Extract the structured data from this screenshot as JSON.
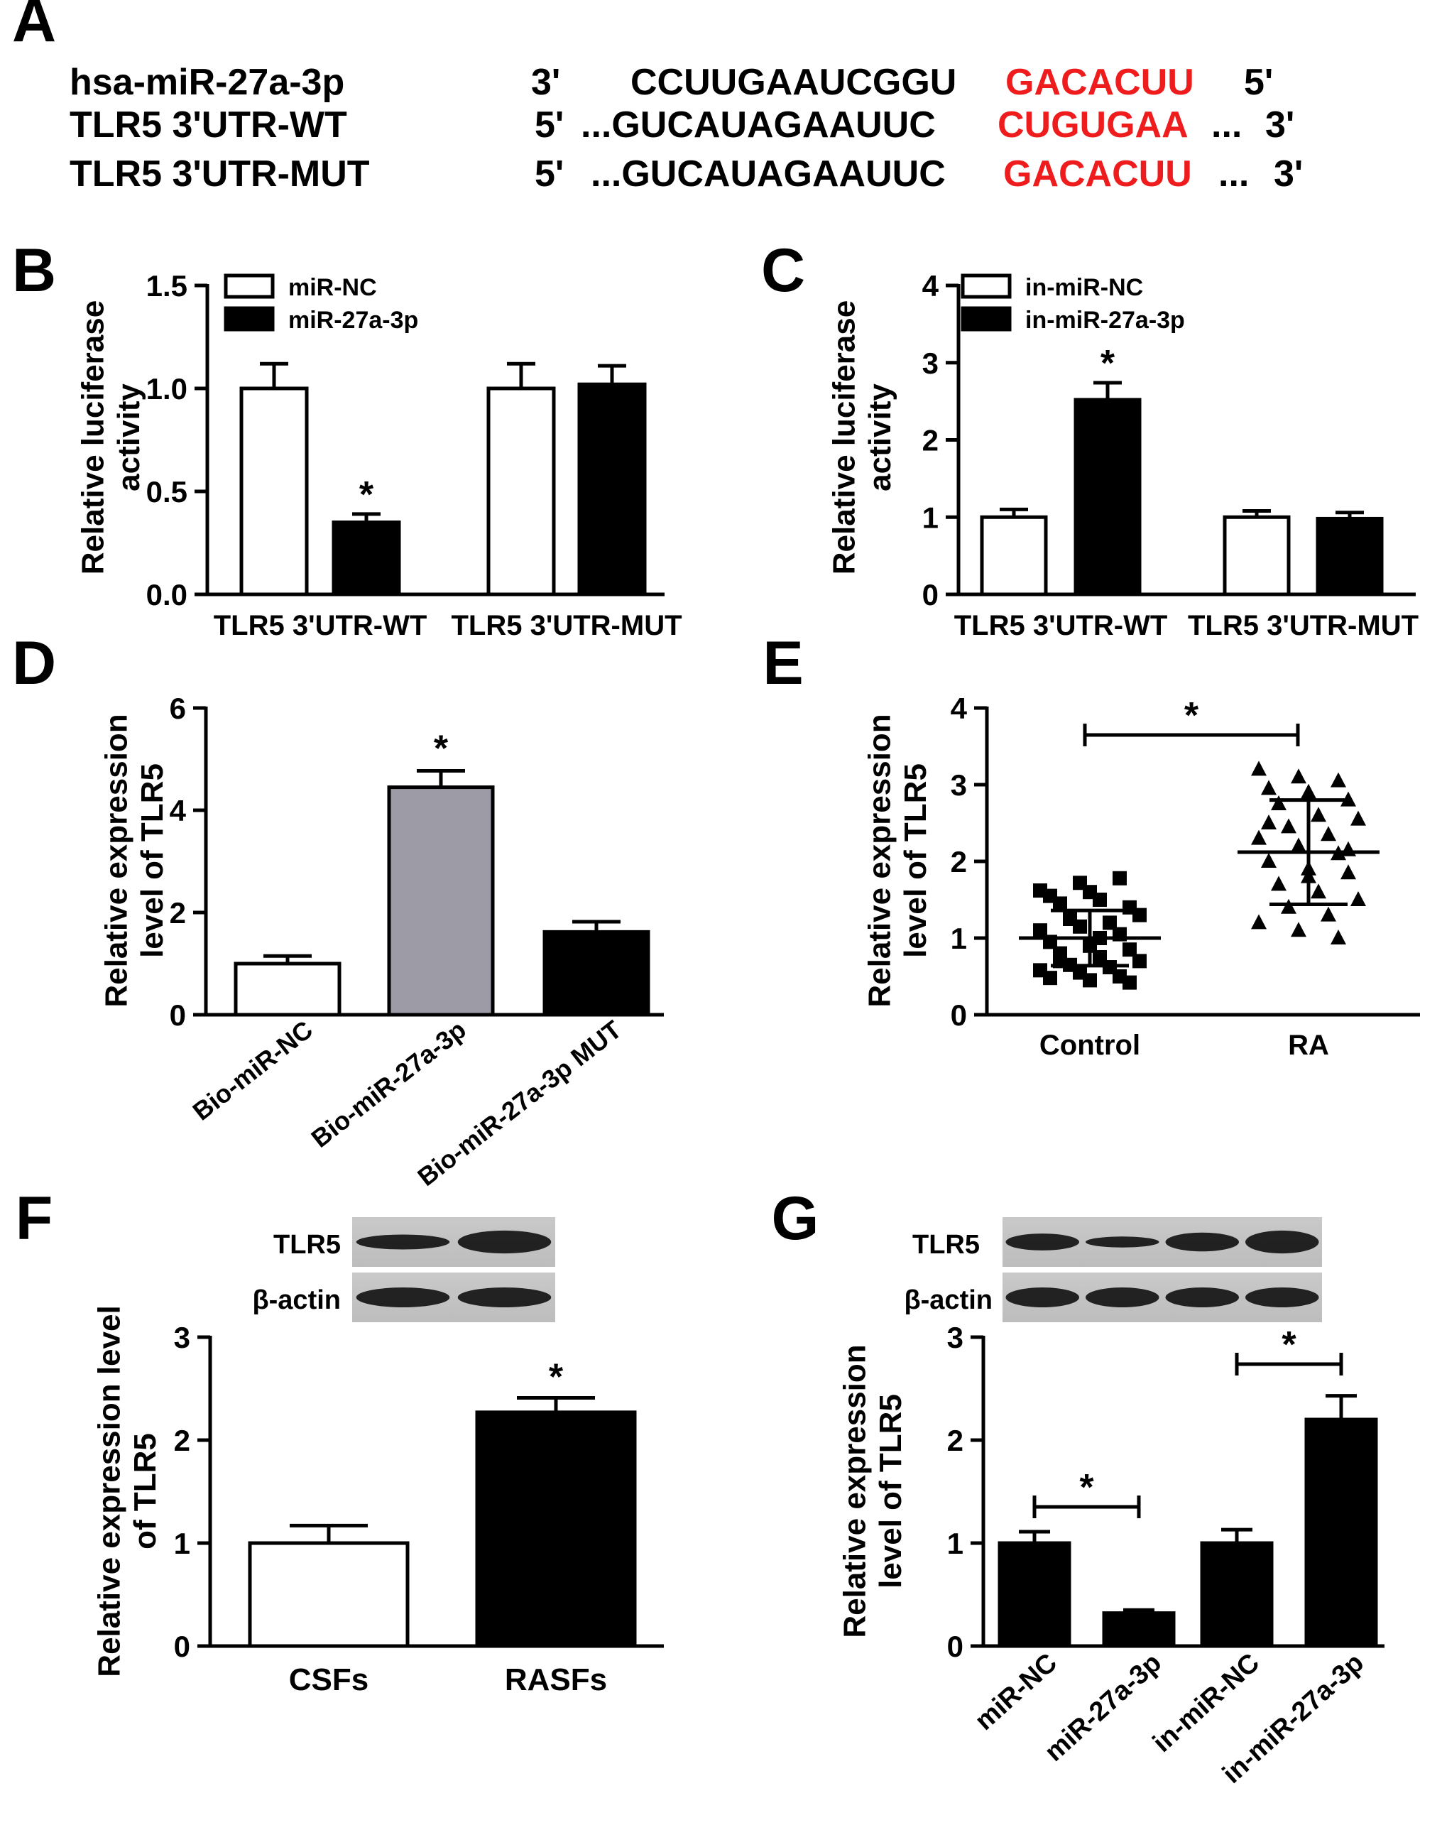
{
  "panel_letters": [
    "A",
    "B",
    "C",
    "D",
    "E",
    "F",
    "G"
  ],
  "sequences": [
    {
      "name": "hsa-miR-27a-3p",
      "end_left": "3'",
      "prefix": "CCUUGAAUCGGU",
      "highlight": "GACACUU",
      "suffix": "",
      "end_right": "5'"
    },
    {
      "name": "TLR5 3'UTR-WT",
      "end_left": "5'",
      "prefix": "...GUCAUAGAAUUC",
      "highlight": "CUGUGAA",
      "suffix": "...",
      "end_right": "3'"
    },
    {
      "name": "TLR5 3'UTR-MUT",
      "end_left": "5'",
      "prefix": "...GUCAUAGAAUUC",
      "highlight": "GACACUU",
      "suffix": "...",
      "end_right": "3'"
    }
  ],
  "colors": {
    "highlight": "#ee1c1c",
    "bar_black": "#000000",
    "bar_white": "#ffffff",
    "bar_gray": "#9d9ca6"
  },
  "chart_data": [
    {
      "panel": "B",
      "type": "bar",
      "ylabel": "Relative luciferase activity",
      "ylim": [
        0,
        1.5
      ],
      "yticks": [
        "0.0",
        "0.5",
        "1.0",
        "1.5"
      ],
      "group_labels": [
        "TLR5 3'UTR-WT",
        "TLR5 3'UTR-MUT"
      ],
      "series": [
        {
          "name": "miR-NC",
          "fill": "white",
          "values": [
            1.0,
            1.0
          ],
          "errors": [
            0.12,
            0.12
          ]
        },
        {
          "name": "miR-27a-3p",
          "fill": "black",
          "values": [
            0.35,
            1.02
          ],
          "errors": [
            0.04,
            0.09
          ]
        }
      ],
      "significance": [
        {
          "series": 1,
          "group": 0,
          "label": "*"
        }
      ],
      "legend": "top-left"
    },
    {
      "panel": "C",
      "type": "bar",
      "ylabel": "Relative luciferase activity",
      "ylim": [
        0,
        4
      ],
      "yticks": [
        "0",
        "1",
        "2",
        "3",
        "4"
      ],
      "group_labels": [
        "TLR5 3'UTR-WT",
        "TLR5 3'UTR-MUT"
      ],
      "series": [
        {
          "name": "in-miR-NC",
          "fill": "white",
          "values": [
            1.0,
            1.0
          ],
          "errors": [
            0.1,
            0.08
          ]
        },
        {
          "name": "in-miR-27a-3p",
          "fill": "black",
          "values": [
            2.52,
            0.98
          ],
          "errors": [
            0.22,
            0.08
          ]
        }
      ],
      "significance": [
        {
          "series": 1,
          "group": 0,
          "label": "*"
        }
      ],
      "legend": "top-left"
    },
    {
      "panel": "D",
      "type": "bar",
      "ylabel": "Relative expression level of TLR5",
      "ylim": [
        0,
        6
      ],
      "yticks": [
        "0",
        "2",
        "4",
        "6"
      ],
      "categories": [
        "Bio-miR-NC",
        "Bio-miR-27a-3p",
        "Bio-miR-27a-3p MUT"
      ],
      "values": [
        1.0,
        4.45,
        1.62
      ],
      "errors": [
        0.15,
        0.32,
        0.2
      ],
      "fills": [
        "white",
        "gray",
        "black"
      ],
      "significance": [
        {
          "index": 1,
          "label": "*"
        }
      ]
    },
    {
      "panel": "E",
      "type": "scatter",
      "ylabel": "Relative expression level of TLR5",
      "ylim": [
        0,
        4
      ],
      "yticks": [
        "0",
        "1",
        "2",
        "3",
        "4"
      ],
      "categories": [
        "Control",
        "RA"
      ],
      "groups": [
        {
          "name": "Control",
          "marker": "square",
          "mean": 1.0,
          "sd": 0.36,
          "points": [
            1.62,
            1.72,
            1.78,
            1.55,
            1.6,
            1.4,
            1.45,
            1.5,
            1.3,
            1.25,
            1.2,
            1.1,
            1.15,
            1.05,
            0.95,
            0.9,
            0.85,
            0.8,
            0.75,
            0.7,
            0.65,
            0.62,
            0.58,
            0.55,
            0.5,
            0.48,
            0.45,
            0.42,
            0.7,
            1.0
          ]
        },
        {
          "name": "RA",
          "marker": "triangle",
          "mean": 2.12,
          "sd": 0.68,
          "points": [
            3.2,
            3.1,
            3.05,
            2.95,
            2.9,
            2.8,
            2.75,
            2.6,
            2.55,
            2.45,
            2.35,
            2.3,
            2.2,
            2.1,
            2.0,
            1.9,
            1.85,
            1.7,
            1.6,
            1.5,
            1.4,
            1.3,
            1.2,
            1.1,
            1.0,
            2.5,
            1.8,
            2.15
          ]
        }
      ],
      "significance": [
        {
          "from": 0,
          "to": 1,
          "label": "*"
        }
      ]
    },
    {
      "panel": "F",
      "type": "bar",
      "ylabel": "Relative expression level of TLR5",
      "ylim": [
        0,
        3
      ],
      "yticks": [
        "0",
        "1",
        "2",
        "3"
      ],
      "categories": [
        "CSFs",
        "RASFs"
      ],
      "values": [
        1.0,
        2.27
      ],
      "errors": [
        0.17,
        0.14
      ],
      "fills": [
        "white",
        "black"
      ],
      "significance": [
        {
          "index": 1,
          "label": "*"
        }
      ],
      "blot_labels": [
        "TLR5",
        "β-actin"
      ]
    },
    {
      "panel": "G",
      "type": "bar",
      "ylabel": "Relative expression level of TLR5",
      "ylim": [
        0,
        3
      ],
      "yticks": [
        "0",
        "1",
        "2",
        "3"
      ],
      "categories": [
        "miR-NC",
        "miR-27a-3p",
        "in-miR-NC",
        "in-miR-27a-3p"
      ],
      "values": [
        1.0,
        0.32,
        1.0,
        2.2
      ],
      "errors": [
        0.11,
        0.03,
        0.13,
        0.23
      ],
      "fills": [
        "black",
        "black",
        "black",
        "black"
      ],
      "significance": [
        {
          "from": 0,
          "to": 1,
          "label": "*"
        },
        {
          "from": 2,
          "to": 3,
          "label": "*"
        }
      ],
      "blot_labels": [
        "TLR5",
        "β-actin"
      ]
    }
  ]
}
